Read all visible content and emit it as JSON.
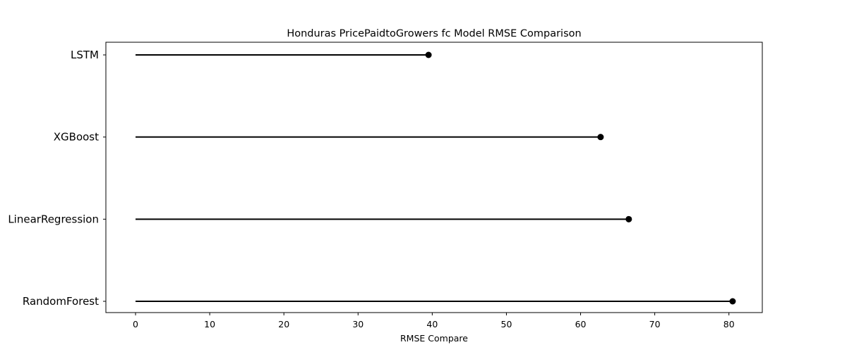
{
  "chart_data": {
    "type": "lollipop",
    "title": "Honduras PricePaidtoGrowers fc Model RMSE Comparison",
    "xlabel": "RMSE Compare",
    "ylabel": "",
    "categories": [
      "LSTM",
      "XGBoost",
      "LinearRegression",
      "RandomForest"
    ],
    "values": [
      39.5,
      62.7,
      66.5,
      80.5
    ],
    "baseline": 0,
    "xlim": [
      -4,
      84.5
    ],
    "xticks": [
      0,
      10,
      20,
      30,
      40,
      50,
      60,
      70,
      80
    ],
    "grid": false,
    "legend": "none",
    "orientation": "horizontal",
    "colors": {
      "stem": "#000000",
      "marker": "#000000",
      "axes": "#000000"
    }
  }
}
